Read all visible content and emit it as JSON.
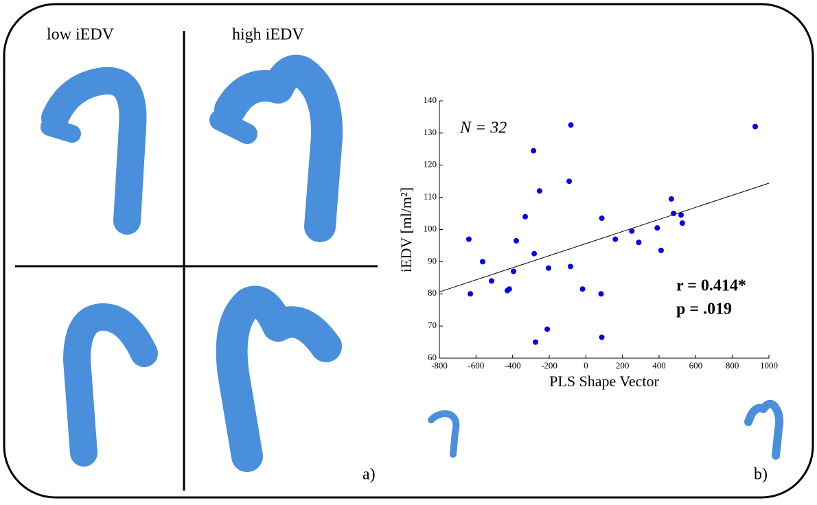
{
  "panel_titles": [
    "low iEDV",
    "high iEDV"
  ],
  "panel_labels": [
    "a)",
    "b)"
  ],
  "chart_data": {
    "type": "scatter",
    "x_label": "PLS Shape Vector",
    "y_label": "iEDV [ml/m²]",
    "annotations": [
      "N = 32",
      "r = 0.414*",
      "p = .019"
    ],
    "color": "#0000ee",
    "x": [
      -639,
      -631,
      -564,
      -515,
      -395,
      -429,
      -418,
      -380,
      -286,
      -331,
      -282,
      -253,
      -275,
      -211,
      -204,
      -82,
      -91,
      -18,
      -84,
      87,
      83,
      87,
      161,
      251,
      289,
      390,
      411,
      467,
      479,
      520,
      527,
      925
    ],
    "values": [
      97,
      80,
      90,
      84,
      87,
      81,
      81.5,
      96.5,
      124.5,
      104,
      92.5,
      112,
      65,
      69,
      88,
      132.5,
      115,
      81.5,
      88.5,
      103.5,
      80,
      66.5,
      97,
      99.5,
      96,
      100.5,
      93.5,
      109.5,
      105,
      104.5,
      102,
      132
    ],
    "trendline": {
      "x": [
        -800,
        1000
      ],
      "values": [
        80.6,
        114.4
      ]
    },
    "xlim": [
      -800,
      1000
    ],
    "ylim": [
      60,
      140
    ],
    "xticks": [
      -800,
      -600,
      -400,
      -200,
      0,
      200,
      400,
      600,
      800,
      1000
    ],
    "yticks": [
      60,
      70,
      80,
      90,
      100,
      110,
      120,
      130,
      140
    ]
  }
}
